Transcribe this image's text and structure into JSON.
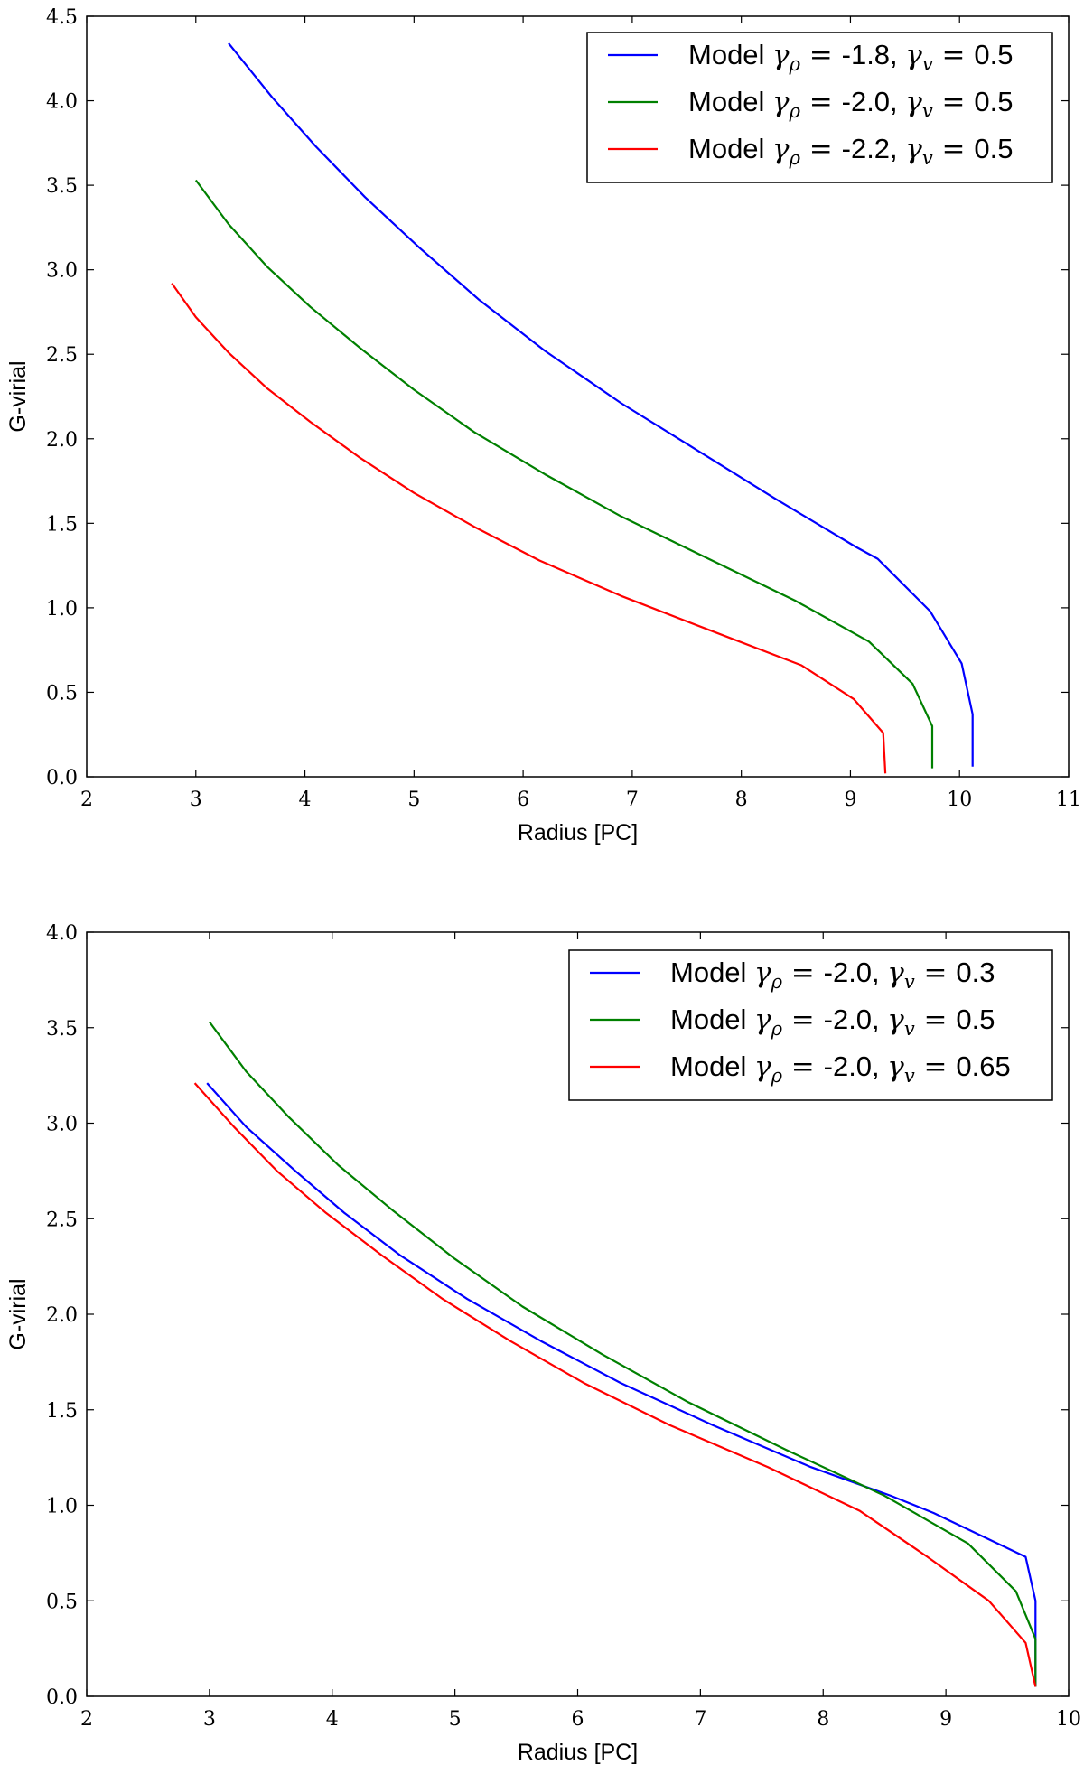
{
  "chart_data": [
    {
      "type": "line",
      "xlabel": "Radius [PC]",
      "ylabel": "G-virial",
      "xlim": [
        2,
        11
      ],
      "ylim": [
        0.0,
        4.5
      ],
      "xticks": [
        2,
        3,
        4,
        5,
        6,
        7,
        8,
        9,
        10,
        11
      ],
      "yticks": [
        0.0,
        0.5,
        1.0,
        1.5,
        2.0,
        2.5,
        3.0,
        3.5,
        4.0,
        4.5
      ],
      "xtick_labels": [
        "2",
        "3",
        "4",
        "5",
        "6",
        "7",
        "8",
        "9",
        "10",
        "11"
      ],
      "ytick_labels": [
        "0.0",
        "0.5",
        "1.0",
        "1.5",
        "2.0",
        "2.5",
        "3.0",
        "3.5",
        "4.0",
        "4.5"
      ],
      "legend_position": "top-right",
      "series": [
        {
          "name": "Model γ_ρ = -1.8, γ_v = 0.5",
          "color": "#0000ff",
          "x": [
            3.3,
            3.7,
            4.1,
            4.55,
            5.05,
            5.6,
            6.2,
            6.9,
            7.6,
            8.3,
            9.05,
            9.25,
            9.73,
            10.02,
            10.12,
            10.12
          ],
          "y": [
            4.34,
            4.02,
            3.73,
            3.43,
            3.13,
            2.82,
            2.52,
            2.21,
            1.93,
            1.65,
            1.36,
            1.29,
            0.98,
            0.67,
            0.37,
            0.06
          ]
        },
        {
          "name": "Model γ_ρ = -2.0, γ_v = 0.5",
          "color": "#008000",
          "x": [
            3.0,
            3.3,
            3.65,
            4.05,
            4.5,
            5.0,
            5.55,
            6.2,
            6.9,
            7.7,
            8.5,
            9.17,
            9.57,
            9.75,
            9.75
          ],
          "y": [
            3.53,
            3.27,
            3.02,
            2.78,
            2.54,
            2.29,
            2.04,
            1.79,
            1.54,
            1.29,
            1.04,
            0.8,
            0.55,
            0.3,
            0.05
          ]
        },
        {
          "name": "Model γ_ρ = -2.2, γ_v = 0.5",
          "color": "#ff0000",
          "x": [
            2.78,
            3.0,
            3.3,
            3.65,
            4.05,
            4.5,
            5.0,
            5.55,
            6.15,
            6.9,
            7.7,
            8.55,
            9.03,
            9.3,
            9.32
          ],
          "y": [
            2.92,
            2.72,
            2.51,
            2.3,
            2.1,
            1.89,
            1.68,
            1.48,
            1.28,
            1.07,
            0.87,
            0.66,
            0.46,
            0.26,
            0.02
          ]
        }
      ]
    },
    {
      "type": "line",
      "xlabel": "Radius [PC]",
      "ylabel": "G-virial",
      "xlim": [
        2,
        10
      ],
      "ylim": [
        0.0,
        4.0
      ],
      "xticks": [
        2,
        3,
        4,
        5,
        6,
        7,
        8,
        9,
        10
      ],
      "yticks": [
        0.0,
        0.5,
        1.0,
        1.5,
        2.0,
        2.5,
        3.0,
        3.5,
        4.0
      ],
      "xtick_labels": [
        "2",
        "3",
        "4",
        "5",
        "6",
        "7",
        "8",
        "9",
        "10"
      ],
      "ytick_labels": [
        "0.0",
        "0.5",
        "1.0",
        "1.5",
        "2.0",
        "2.5",
        "3.0",
        "3.5",
        "4.0"
      ],
      "legend_position": "top-right",
      "series": [
        {
          "name": "Model γ_ρ = -2.0, γ_v = 0.3",
          "color": "#0000ff",
          "x": [
            2.98,
            3.3,
            3.7,
            4.1,
            4.55,
            5.1,
            5.7,
            6.35,
            7.1,
            7.9,
            8.55,
            8.9,
            9.65,
            9.73,
            9.73
          ],
          "y": [
            3.21,
            2.98,
            2.75,
            2.53,
            2.31,
            2.08,
            1.86,
            1.64,
            1.42,
            1.2,
            1.05,
            0.96,
            0.73,
            0.5,
            0.05
          ]
        },
        {
          "name": "Model γ_ρ = -2.0, γ_v = 0.5",
          "color": "#008000",
          "x": [
            3.0,
            3.3,
            3.65,
            4.05,
            4.5,
            5.0,
            5.55,
            6.2,
            6.9,
            7.7,
            8.5,
            9.18,
            9.57,
            9.73,
            9.73
          ],
          "y": [
            3.53,
            3.27,
            3.03,
            2.78,
            2.54,
            2.29,
            2.04,
            1.79,
            1.54,
            1.29,
            1.05,
            0.8,
            0.55,
            0.3,
            0.05
          ]
        },
        {
          "name": "Model γ_ρ = -2.0, γ_v = 0.65",
          "color": "#ff0000",
          "x": [
            2.88,
            3.2,
            3.55,
            3.95,
            4.4,
            4.9,
            5.45,
            6.05,
            6.75,
            7.55,
            8.3,
            8.85,
            9.35,
            9.65,
            9.73
          ],
          "y": [
            3.21,
            2.98,
            2.75,
            2.53,
            2.31,
            2.08,
            1.86,
            1.64,
            1.42,
            1.2,
            0.97,
            0.73,
            0.5,
            0.28,
            0.05
          ]
        }
      ]
    }
  ],
  "legend_labels": [
    [
      {
        "model": "Model ",
        "rho_val": "-1.8",
        "v_val": "0.5"
      },
      {
        "model": "Model ",
        "rho_val": "-2.0",
        "v_val": "0.5"
      },
      {
        "model": "Model ",
        "rho_val": "-2.2",
        "v_val": "0.5"
      }
    ],
    [
      {
        "model": "Model ",
        "rho_val": "-2.0",
        "v_val": "0.3"
      },
      {
        "model": "Model ",
        "rho_val": "-2.0",
        "v_val": "0.5"
      },
      {
        "model": "Model ",
        "rho_val": "-2.0",
        "v_val": "0.65"
      }
    ]
  ]
}
